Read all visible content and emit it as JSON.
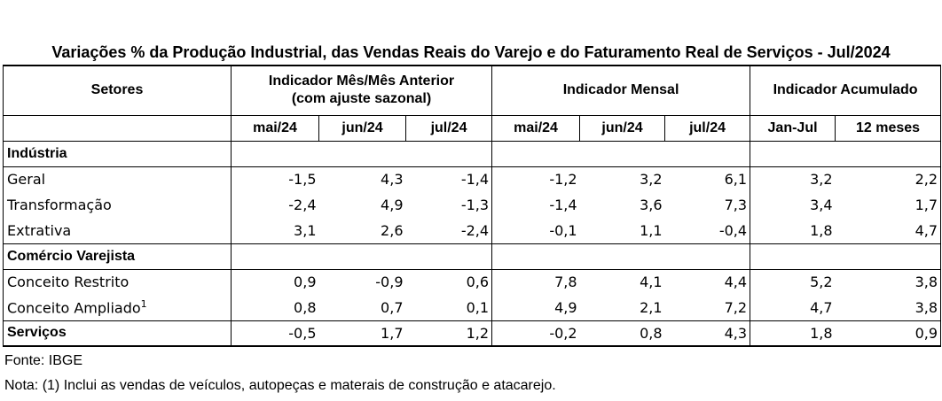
{
  "title": "Variações % da Produção Industrial, das Vendas Reais do Varejo e do Faturamento Real de Serviços - Jul/2024",
  "headers": {
    "setores": "Setores",
    "group1_line1": "Indicador Mês/Mês Anterior",
    "group1_line2": "(com ajuste sazonal)",
    "group2": "Indicador Mensal",
    "group3": "Indicador Acumulado",
    "cols": [
      "mai/24",
      "jun/24",
      "jul/24",
      "mai/24",
      "jun/24",
      "jul/24",
      "Jan-Jul",
      "12 meses"
    ]
  },
  "sections": {
    "industria": "Indústria",
    "comercio": "Comércio Varejista",
    "servicos": "Serviços"
  },
  "rows": {
    "geral": {
      "label": "Geral",
      "values": [
        "-1,5",
        "4,3",
        "-1,4",
        "-1,2",
        "3,2",
        "6,1",
        "3,2",
        "2,2"
      ]
    },
    "transformacao": {
      "label": "Transformação",
      "values": [
        "-2,4",
        "4,9",
        "-1,3",
        "-1,4",
        "3,6",
        "7,3",
        "3,4",
        "1,7"
      ]
    },
    "extrativa": {
      "label": "Extrativa",
      "values": [
        "3,1",
        "2,6",
        "-2,4",
        "-0,1",
        "1,1",
        "-0,4",
        "1,8",
        "4,7"
      ]
    },
    "restrito": {
      "label": "Conceito Restrito",
      "values": [
        "0,9",
        "-0,9",
        "0,6",
        "7,8",
        "4,1",
        "4,4",
        "5,2",
        "3,8"
      ]
    },
    "ampliado": {
      "label": "Conceito Ampliado",
      "sup": "1",
      "values": [
        "0,8",
        "0,7",
        "0,1",
        "4,9",
        "2,1",
        "7,2",
        "4,7",
        "3,8"
      ]
    },
    "servicos": {
      "values": [
        "-0,5",
        "1,7",
        "1,2",
        "-0,2",
        "0,8",
        "4,3",
        "1,8",
        "0,9"
      ]
    }
  },
  "footer": {
    "fonte": "Fonte: IBGE",
    "nota": "Nota: (1) Inclui as vendas de veículos, autopeças e materais de construção e atacarejo."
  }
}
